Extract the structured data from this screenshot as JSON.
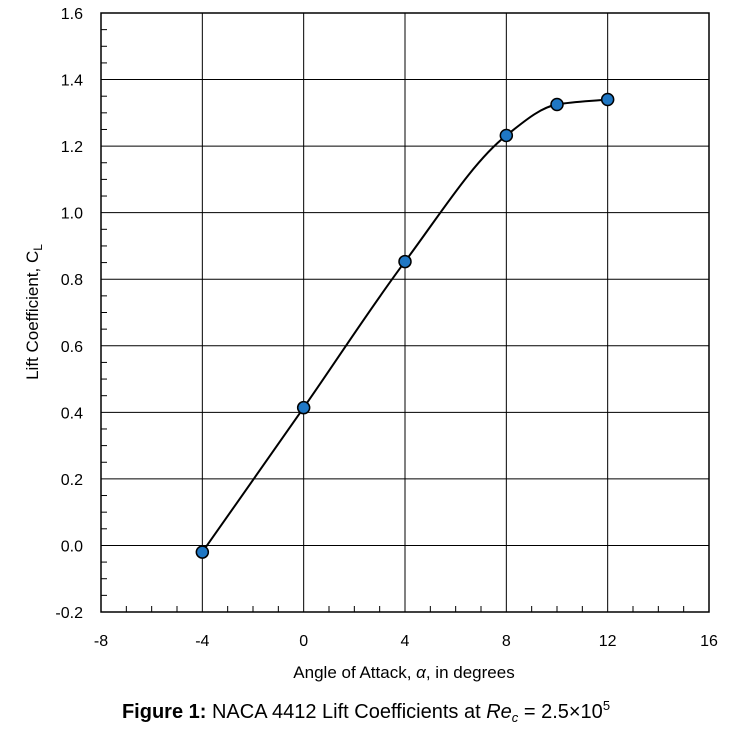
{
  "chart_data": {
    "type": "line",
    "smooth": true,
    "markers": true,
    "x": [
      -4,
      0,
      4,
      8,
      10,
      12
    ],
    "series": [
      {
        "values": [
          -0.02,
          0.414,
          0.853,
          1.232,
          1.325,
          1.34
        ]
      }
    ],
    "xlim": [
      -8,
      16
    ],
    "ylim": [
      -0.2,
      1.6
    ],
    "xticks": [
      "-8",
      "-4",
      "0",
      "4",
      "8",
      "12",
      "16"
    ],
    "yticks": [
      "1.6",
      "1.4",
      "1.2",
      "1.0",
      "0.8",
      "0.6",
      "0.4",
      "0.2",
      "0.0",
      "-0.2"
    ],
    "xlabel_parts": {
      "text": "Angle of Attack, ",
      "symbol": "α",
      "rest": ", in degrees"
    },
    "ylabel_parts": {
      "text": "Lift Coefficient, C",
      "sub": "L"
    },
    "grid": true,
    "marker_color": "#1f77c4",
    "line_color": "#000000"
  },
  "caption": {
    "label": "Figure 1:",
    "text": " NACA 4412 Lift Coefficients at ",
    "re": "Re",
    "re_sub": "c",
    "eq": " = 2.5×10",
    "exp": "5"
  }
}
